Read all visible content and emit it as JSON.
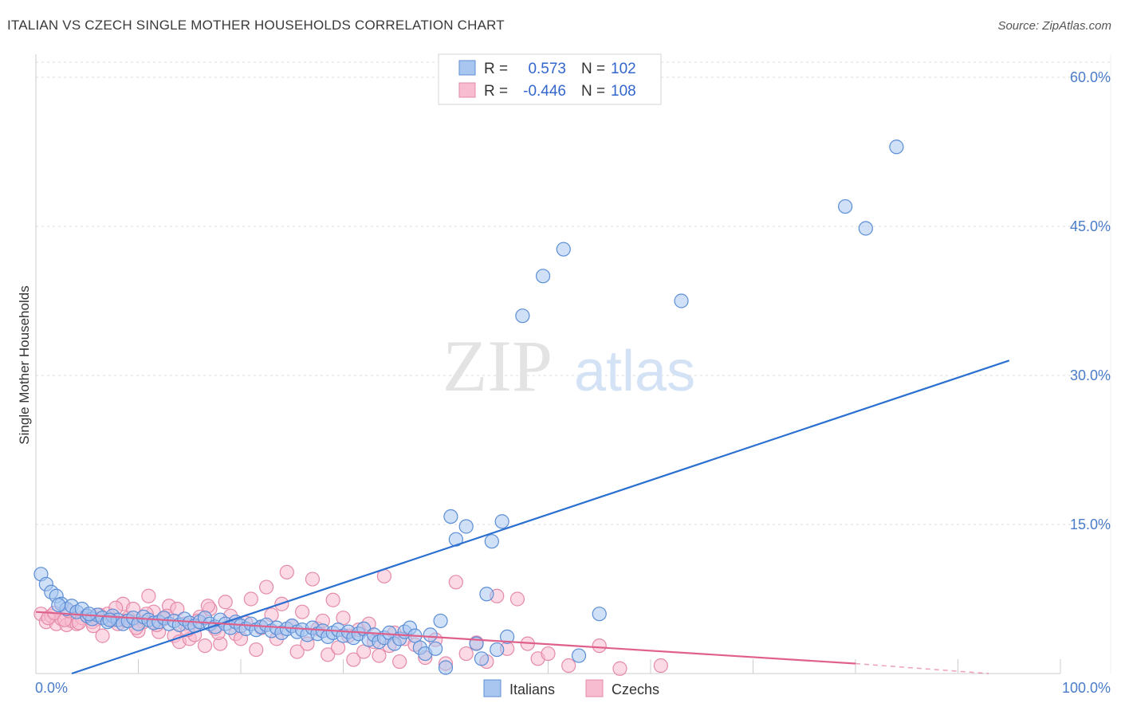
{
  "title": "ITALIAN VS CZECH SINGLE MOTHER HOUSEHOLDS CORRELATION CHART",
  "source": "Source: ZipAtlas.com",
  "watermark": {
    "zip": "ZIP",
    "atlas": "atlas"
  },
  "colors": {
    "italians_fill": "#a8c6f0",
    "italians_stroke": "#5b8ed6",
    "italians_line": "#2a6fd1",
    "czechs_fill": "#f7bcd0",
    "czechs_stroke": "#e58aa9",
    "czechs_line": "#e0608c",
    "axis_text": "#4a7cc9",
    "grid": "#dddddd"
  },
  "legend": {
    "rows": [
      {
        "r_label": "R =",
        "r_value": "0.573",
        "n_label": "N =",
        "n_value": "102"
      },
      {
        "r_label": "R =",
        "r_value": "-0.446",
        "n_label": "N =",
        "n_value": "108"
      }
    ]
  },
  "chart_data": {
    "type": "scatter",
    "title": "ITALIAN VS CZECH SINGLE MOTHER HOUSEHOLDS CORRELATION CHART",
    "xlabel": "",
    "ylabel": "Single Mother Households",
    "xlim": [
      0,
      100
    ],
    "ylim": [
      0,
      60
    ],
    "x_tick_labels": [
      "0.0%",
      "100.0%"
    ],
    "y_ticks": [
      15,
      30,
      45,
      60
    ],
    "y_tick_labels": [
      "15.0%",
      "30.0%",
      "45.0%",
      "60.0%"
    ],
    "grid": true,
    "legend_position": "top-center",
    "series": [
      {
        "name": "Italians",
        "trend": {
          "x": [
            3.5,
            95
          ],
          "y": [
            0,
            31.5
          ]
        },
        "points": [
          [
            0.5,
            10.0
          ],
          [
            1.0,
            9.0
          ],
          [
            1.5,
            8.2
          ],
          [
            2.0,
            7.8
          ],
          [
            2.5,
            7.0
          ],
          [
            3.0,
            6.5
          ],
          [
            3.5,
            6.8
          ],
          [
            4.0,
            6.2
          ],
          [
            4.5,
            6.5
          ],
          [
            5.0,
            5.8
          ],
          [
            5.5,
            5.5
          ],
          [
            6.0,
            5.9
          ],
          [
            6.5,
            5.6
          ],
          [
            7.0,
            5.2
          ],
          [
            7.5,
            5.8
          ],
          [
            8.0,
            5.4
          ],
          [
            8.5,
            5.0
          ],
          [
            9.0,
            5.3
          ],
          [
            9.5,
            5.6
          ],
          [
            10.0,
            5.0
          ],
          [
            10.5,
            5.7
          ],
          [
            11.0,
            5.4
          ],
          [
            11.5,
            5.1
          ],
          [
            12.0,
            5.2
          ],
          [
            12.5,
            5.6
          ],
          [
            13.0,
            5.0
          ],
          [
            13.5,
            5.3
          ],
          [
            14.0,
            4.9
          ],
          [
            14.5,
            5.5
          ],
          [
            15.0,
            5.1
          ],
          [
            15.5,
            4.8
          ],
          [
            16.0,
            5.2
          ],
          [
            16.5,
            5.6
          ],
          [
            17.0,
            5.0
          ],
          [
            17.5,
            4.7
          ],
          [
            18.0,
            5.4
          ],
          [
            18.5,
            5.0
          ],
          [
            19.0,
            4.6
          ],
          [
            19.5,
            5.2
          ],
          [
            20.0,
            4.8
          ],
          [
            20.5,
            4.5
          ],
          [
            21.0,
            5.0
          ],
          [
            21.5,
            4.4
          ],
          [
            22.0,
            4.7
          ],
          [
            22.5,
            4.9
          ],
          [
            23.0,
            4.3
          ],
          [
            23.5,
            4.6
          ],
          [
            24.0,
            4.1
          ],
          [
            24.5,
            4.5
          ],
          [
            25.0,
            4.8
          ],
          [
            25.5,
            4.2
          ],
          [
            26.0,
            4.4
          ],
          [
            26.5,
            3.9
          ],
          [
            27.0,
            4.6
          ],
          [
            27.5,
            4.0
          ],
          [
            28.0,
            4.3
          ],
          [
            28.5,
            3.7
          ],
          [
            29.0,
            4.1
          ],
          [
            29.5,
            4.4
          ],
          [
            30.0,
            3.8
          ],
          [
            30.5,
            4.2
          ],
          [
            31.0,
            3.6
          ],
          [
            31.5,
            4.0
          ],
          [
            32.0,
            4.5
          ],
          [
            32.5,
            3.4
          ],
          [
            33.0,
            3.9
          ],
          [
            33.5,
            3.2
          ],
          [
            34.0,
            3.6
          ],
          [
            34.5,
            4.1
          ],
          [
            35.0,
            3.0
          ],
          [
            35.5,
            3.5
          ],
          [
            36.0,
            4.2
          ],
          [
            36.5,
            4.6
          ],
          [
            37.0,
            3.8
          ],
          [
            37.5,
            2.6
          ],
          [
            38.0,
            2.0
          ],
          [
            38.5,
            3.9
          ],
          [
            39.0,
            2.5
          ],
          [
            39.5,
            5.3
          ],
          [
            40.0,
            0.6
          ],
          [
            40.5,
            15.8
          ],
          [
            41.0,
            13.5
          ],
          [
            42.0,
            14.8
          ],
          [
            43.0,
            3.0
          ],
          [
            43.5,
            1.5
          ],
          [
            44.0,
            8.0
          ],
          [
            44.5,
            13.3
          ],
          [
            45.0,
            2.4
          ],
          [
            45.5,
            15.3
          ],
          [
            46.0,
            3.7
          ],
          [
            47.5,
            36.0
          ],
          [
            49.5,
            40.0
          ],
          [
            51.5,
            42.7
          ],
          [
            53.0,
            1.8
          ],
          [
            55.0,
            6.0
          ],
          [
            63.0,
            37.5
          ],
          [
            79.0,
            47.0
          ],
          [
            81.0,
            44.8
          ],
          [
            84.0,
            53.0
          ],
          [
            2.2,
            6.9
          ],
          [
            5.2,
            6.0
          ],
          [
            7.2,
            5.4
          ]
        ]
      },
      {
        "name": "Czechs",
        "trend": {
          "x": [
            0,
            80
          ],
          "y": [
            6.2,
            1.0
          ]
        },
        "trend_dashed": {
          "x": [
            80,
            93
          ],
          "y": [
            1.0,
            0.0
          ]
        },
        "points": [
          [
            0.5,
            6.0
          ],
          [
            1.0,
            5.2
          ],
          [
            1.5,
            5.8
          ],
          [
            2.0,
            5.0
          ],
          [
            2.5,
            5.5
          ],
          [
            3.0,
            4.9
          ],
          [
            3.5,
            5.3
          ],
          [
            4.0,
            5.0
          ],
          [
            4.5,
            5.6
          ],
          [
            5.0,
            5.8
          ],
          [
            5.5,
            5.2
          ],
          [
            6.0,
            5.5
          ],
          [
            6.5,
            3.8
          ],
          [
            7.0,
            6.0
          ],
          [
            7.5,
            5.4
          ],
          [
            8.0,
            5.0
          ],
          [
            8.5,
            7.0
          ],
          [
            9.0,
            5.6
          ],
          [
            9.5,
            6.5
          ],
          [
            10.0,
            4.3
          ],
          [
            10.5,
            5.2
          ],
          [
            11.0,
            7.8
          ],
          [
            11.5,
            6.2
          ],
          [
            12.0,
            4.2
          ],
          [
            12.5,
            5.5
          ],
          [
            13.0,
            6.8
          ],
          [
            13.5,
            3.8
          ],
          [
            14.0,
            3.2
          ],
          [
            14.5,
            5.0
          ],
          [
            15.0,
            3.5
          ],
          [
            15.5,
            3.9
          ],
          [
            16.0,
            5.7
          ],
          [
            16.5,
            2.8
          ],
          [
            17.0,
            6.5
          ],
          [
            17.5,
            4.5
          ],
          [
            18.0,
            3.0
          ],
          [
            18.5,
            7.2
          ],
          [
            19.0,
            5.8
          ],
          [
            19.5,
            4.0
          ],
          [
            20.0,
            3.5
          ],
          [
            20.5,
            5.1
          ],
          [
            21.0,
            7.5
          ],
          [
            21.5,
            2.4
          ],
          [
            22.0,
            4.6
          ],
          [
            22.5,
            8.7
          ],
          [
            23.0,
            5.9
          ],
          [
            23.5,
            3.5
          ],
          [
            24.0,
            7.0
          ],
          [
            24.5,
            10.2
          ],
          [
            25.0,
            4.8
          ],
          [
            25.5,
            2.2
          ],
          [
            26.0,
            6.2
          ],
          [
            26.5,
            3.0
          ],
          [
            27.0,
            9.5
          ],
          [
            27.5,
            4.5
          ],
          [
            28.0,
            5.3
          ],
          [
            28.5,
            1.9
          ],
          [
            29.0,
            7.4
          ],
          [
            29.5,
            2.6
          ],
          [
            30.0,
            5.6
          ],
          [
            30.5,
            3.8
          ],
          [
            31.0,
            1.4
          ],
          [
            31.5,
            4.4
          ],
          [
            32.0,
            2.2
          ],
          [
            32.5,
            5.0
          ],
          [
            33.0,
            3.2
          ],
          [
            33.5,
            1.8
          ],
          [
            34.0,
            9.8
          ],
          [
            34.5,
            2.8
          ],
          [
            35.0,
            4.1
          ],
          [
            35.5,
            1.2
          ],
          [
            36.0,
            3.5
          ],
          [
            37.0,
            2.9
          ],
          [
            38.0,
            1.6
          ],
          [
            39.0,
            3.4
          ],
          [
            40.0,
            1.0
          ],
          [
            41.0,
            9.2
          ],
          [
            42.0,
            2.0
          ],
          [
            43.0,
            3.1
          ],
          [
            44.0,
            1.2
          ],
          [
            45.0,
            7.8
          ],
          [
            46.0,
            2.5
          ],
          [
            47.0,
            7.5
          ],
          [
            48.0,
            3.0
          ],
          [
            49.0,
            1.5
          ],
          [
            50.0,
            2.0
          ],
          [
            52.0,
            0.8
          ],
          [
            55.0,
            2.8
          ],
          [
            57.0,
            0.5
          ],
          [
            61.0,
            0.8
          ],
          [
            1.2,
            5.6
          ],
          [
            1.8,
            6.1
          ],
          [
            2.8,
            5.4
          ],
          [
            3.2,
            6.3
          ],
          [
            4.2,
            5.1
          ],
          [
            5.6,
            4.8
          ],
          [
            6.2,
            5.9
          ],
          [
            7.8,
            6.6
          ],
          [
            8.8,
            5.3
          ],
          [
            9.8,
            4.6
          ],
          [
            10.8,
            6.0
          ],
          [
            11.8,
            4.9
          ],
          [
            12.8,
            5.8
          ],
          [
            13.8,
            6.5
          ],
          [
            14.8,
            4.4
          ],
          [
            15.8,
            5.3
          ],
          [
            16.8,
            6.8
          ],
          [
            17.8,
            4.1
          ]
        ]
      }
    ]
  },
  "bottom_legend": [
    "Italians",
    "Czechs"
  ]
}
